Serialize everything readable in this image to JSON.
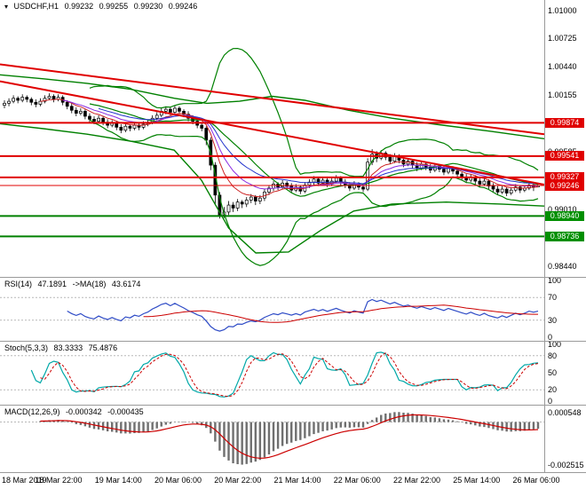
{
  "title_bar": {
    "icon": "▾",
    "symbol": "USDCHF,H1",
    "open": "0.99232",
    "high": "0.99255",
    "low": "0.99230",
    "close": "0.99246"
  },
  "colors": {
    "up_candle": "#ffffff",
    "down_candle": "#000000",
    "candle_outline": "#000000",
    "bollinger": "#008000",
    "level_red": "#e00000",
    "level_green": "#008000",
    "trendline": "#e00000",
    "tag_red_bg": "#e00000",
    "tag_green_bg": "#008f00",
    "tag_text": "#ffffff",
    "axis_text": "#000000",
    "divider": "#9a9a9a",
    "rsi_line": "#2e4bc6",
    "rsi_ma": "#cc0000",
    "stoch_k": "#00a8a8",
    "stoch_d": "#cc0000",
    "macd_hist": "#6f6f6f",
    "macd_signal": "#cc0000",
    "ema_fast": "#cc2222",
    "ema_mid": "#8a2be2",
    "ema_slow": "#2233cc"
  },
  "chart_data": [
    {
      "type": "candlestick",
      "panel": "price",
      "symbol": "USDCHF",
      "timeframe": "H1",
      "x_labels": [
        "18 Mar 2019",
        "18 Mar 22:00",
        "19 Mar 14:00",
        "20 Mar 06:00",
        "20 Mar 22:00",
        "21 Mar 14:00",
        "22 Mar 06:00",
        "22 Mar 22:00",
        "25 Mar 14:00",
        "26 Mar 06:00"
      ],
      "y_ticks": [
        "1.01000",
        "1.00725",
        "1.00440",
        "1.00155",
        "0.99870",
        "0.99585",
        "0.99300",
        "0.99010",
        "0.98725",
        "0.98440"
      ],
      "y_tick_values": [
        1.01,
        1.00725,
        1.0044,
        1.00155,
        0.9987,
        0.99585,
        0.993,
        0.9901,
        0.98725,
        0.9844
      ],
      "y_range": [
        0.9833,
        1.01105
      ],
      "levels": [
        {
          "price": 0.99874,
          "label": "0.99874",
          "color": "red"
        },
        {
          "price": 0.99541,
          "label": "0.99541",
          "color": "red"
        },
        {
          "price": 0.99327,
          "label": "0.99327",
          "color": "red"
        },
        {
          "price": 0.9894,
          "label": "0.98940",
          "color": "green"
        },
        {
          "price": 0.98736,
          "label": "0.98736",
          "color": "green"
        }
      ],
      "current_price": {
        "price": 0.99246,
        "label": "0.99246",
        "color": "red"
      },
      "trendlines": [
        {
          "x1": 0.0,
          "price1": 1.0046,
          "x2": 1.0,
          "price2": 0.9976
        },
        {
          "x1": 0.0,
          "price1": 1.0029,
          "x2": 1.0,
          "price2": 0.99255
        }
      ],
      "band_upper": [
        [
          0.0,
          1.00355
        ],
        [
          0.08,
          1.00315
        ],
        [
          0.16,
          1.0027
        ],
        [
          0.24,
          1.0021
        ],
        [
          0.32,
          1.0012
        ],
        [
          0.38,
          1.0007
        ],
        [
          0.44,
          1.0009
        ],
        [
          0.5,
          1.0014
        ],
        [
          0.56,
          1.001
        ],
        [
          0.64,
          1.0
        ],
        [
          0.72,
          0.9992
        ],
        [
          0.8,
          0.9986
        ],
        [
          0.9,
          0.9979
        ],
        [
          1.0,
          0.99715
        ]
      ],
      "band_lower": [
        [
          0.0,
          0.99865
        ],
        [
          0.08,
          0.99815
        ],
        [
          0.16,
          0.9976
        ],
        [
          0.24,
          0.9969
        ],
        [
          0.32,
          0.996
        ],
        [
          0.37,
          0.993
        ],
        [
          0.42,
          0.9882
        ],
        [
          0.47,
          0.9857
        ],
        [
          0.53,
          0.9858
        ],
        [
          0.59,
          0.988
        ],
        [
          0.65,
          0.9899
        ],
        [
          0.72,
          0.9906
        ],
        [
          0.82,
          0.9908
        ],
        [
          0.92,
          0.9906
        ],
        [
          1.0,
          0.9904
        ]
      ],
      "ohlc": [
        [
          1.0005,
          1.001,
          1.0002,
          1.0007
        ],
        [
          1.0007,
          1.0012,
          1.0004,
          1.0009
        ],
        [
          1.0009,
          1.0015,
          1.0007,
          1.0012
        ],
        [
          1.0012,
          1.0014,
          1.0007,
          1.001
        ],
        [
          1.001,
          1.0016,
          1.0008,
          1.0013
        ],
        [
          1.0013,
          1.0015,
          1.0008,
          1.0011
        ],
        [
          1.0011,
          1.0013,
          1.0005,
          1.0008
        ],
        [
          1.0008,
          1.0011,
          1.0003,
          1.0006
        ],
        [
          1.0006,
          1.0012,
          1.0004,
          1.0009
        ],
        [
          1.0009,
          1.0015,
          1.0007,
          1.0012
        ],
        [
          1.0012,
          1.0017,
          1.001,
          1.0014
        ],
        [
          1.0014,
          1.0016,
          1.0008,
          1.0011
        ],
        [
          1.0011,
          1.0016,
          1.0009,
          1.0013
        ],
        [
          1.0013,
          1.0015,
          1.0005,
          1.0008
        ],
        [
          1.0008,
          1.001,
          1.0001,
          1.0004
        ],
        [
          1.0004,
          1.0007,
          0.9997,
          1.0
        ],
        [
          1.0,
          1.0003,
          0.9994,
          0.9997
        ],
        [
          0.9997,
          1.0002,
          0.9995,
          0.9999
        ],
        [
          0.9999,
          1.0001,
          0.9991,
          0.9994
        ],
        [
          0.9994,
          0.9997,
          0.9988,
          0.9991
        ],
        [
          0.9991,
          0.9994,
          0.9986,
          0.9989
        ],
        [
          0.9989,
          0.9995,
          0.9987,
          0.9992
        ],
        [
          0.9992,
          0.9994,
          0.9985,
          0.9988
        ],
        [
          0.9988,
          0.9991,
          0.9982,
          0.9985
        ],
        [
          0.9985,
          0.999,
          0.9983,
          0.9987
        ],
        [
          0.9987,
          0.9989,
          0.998,
          0.9983
        ],
        [
          0.9983,
          0.9986,
          0.9977,
          0.998
        ],
        [
          0.998,
          0.9987,
          0.9978,
          0.9984
        ],
        [
          0.9984,
          0.9986,
          0.9979,
          0.9982
        ],
        [
          0.9982,
          0.9988,
          0.998,
          0.9985
        ],
        [
          0.9985,
          0.9987,
          0.998,
          0.9983
        ],
        [
          0.9983,
          0.9989,
          0.9981,
          0.9986
        ],
        [
          0.9986,
          0.9991,
          0.9984,
          0.9988
        ],
        [
          0.9988,
          0.9995,
          0.9986,
          0.9992
        ],
        [
          0.9992,
          0.9998,
          0.999,
          0.9995
        ],
        [
          0.9995,
          1.0002,
          0.9993,
          0.9999
        ],
        [
          0.9999,
          1.0004,
          0.9996,
          1.0001
        ],
        [
          1.0001,
          1.0003,
          0.9995,
          0.9998
        ],
        [
          0.9998,
          1.0005,
          0.9996,
          1.0002
        ],
        [
          1.0002,
          1.0004,
          0.9996,
          0.9999
        ],
        [
          0.9999,
          1.0001,
          0.9993,
          0.9996
        ],
        [
          0.9996,
          0.9999,
          0.9989,
          0.9992
        ],
        [
          0.9992,
          0.9995,
          0.9986,
          0.9989
        ],
        [
          0.9989,
          0.9992,
          0.9982,
          0.9985
        ],
        [
          0.9985,
          0.9988,
          0.9979,
          0.9982
        ],
        [
          0.9982,
          0.9984,
          0.9965,
          0.997
        ],
        [
          0.997,
          0.9973,
          0.994,
          0.9945
        ],
        [
          0.9945,
          0.9948,
          0.9905,
          0.9915
        ],
        [
          0.9915,
          0.9918,
          0.98915,
          0.9895
        ],
        [
          0.9895,
          0.9903,
          0.9892,
          0.9898
        ],
        [
          0.9898,
          0.9909,
          0.9895,
          0.9905
        ],
        [
          0.9905,
          0.9908,
          0.9898,
          0.9902
        ],
        [
          0.9902,
          0.9911,
          0.9899,
          0.9908
        ],
        [
          0.9908,
          0.991,
          0.9902,
          0.9906
        ],
        [
          0.9906,
          0.9913,
          0.9903,
          0.991
        ],
        [
          0.991,
          0.9916,
          0.9907,
          0.9913
        ],
        [
          0.9913,
          0.9915,
          0.9905,
          0.9909
        ],
        [
          0.9909,
          0.9915,
          0.9906,
          0.9912
        ],
        [
          0.9912,
          0.9921,
          0.9909,
          0.9918
        ],
        [
          0.9918,
          0.9925,
          0.9915,
          0.9922
        ],
        [
          0.9922,
          0.9929,
          0.9919,
          0.9926
        ],
        [
          0.9926,
          0.9928,
          0.992,
          0.9923
        ],
        [
          0.9923,
          0.993,
          0.9921,
          0.9927
        ],
        [
          0.9927,
          0.9929,
          0.9921,
          0.9924
        ],
        [
          0.9924,
          0.9927,
          0.9917,
          0.992
        ],
        [
          0.992,
          0.9926,
          0.9918,
          0.9923
        ],
        [
          0.9923,
          0.9925,
          0.9916,
          0.9919
        ],
        [
          0.9919,
          0.9928,
          0.9917,
          0.9925
        ],
        [
          0.9925,
          0.9931,
          0.9922,
          0.9928
        ],
        [
          0.9928,
          0.9934,
          0.9925,
          0.9931
        ],
        [
          0.9931,
          0.9933,
          0.9924,
          0.9927
        ],
        [
          0.9927,
          0.9933,
          0.9925,
          0.993
        ],
        [
          0.993,
          0.9932,
          0.9923,
          0.9926
        ],
        [
          0.9926,
          0.9932,
          0.9924,
          0.9929
        ],
        [
          0.9929,
          0.9935,
          0.9927,
          0.9932
        ],
        [
          0.9932,
          0.9934,
          0.9925,
          0.9928
        ],
        [
          0.9928,
          0.9931,
          0.9922,
          0.9925
        ],
        [
          0.9925,
          0.9928,
          0.9919,
          0.9922
        ],
        [
          0.9922,
          0.9929,
          0.992,
          0.9926
        ],
        [
          0.9926,
          0.9928,
          0.992,
          0.9923
        ],
        [
          0.9923,
          0.9926,
          0.9918,
          0.9921
        ],
        [
          0.9921,
          0.9952,
          0.9919,
          0.9948
        ],
        [
          0.9948,
          0.9961,
          0.9945,
          0.9956
        ],
        [
          0.9956,
          0.9959,
          0.9948,
          0.9952
        ],
        [
          0.9952,
          0.996,
          0.995,
          0.9957
        ],
        [
          0.9957,
          0.9959,
          0.995,
          0.9953
        ],
        [
          0.9953,
          0.9956,
          0.9946,
          0.9949
        ],
        [
          0.9949,
          0.9957,
          0.9947,
          0.9954
        ],
        [
          0.9954,
          0.9956,
          0.9947,
          0.995
        ],
        [
          0.995,
          0.9953,
          0.9943,
          0.9946
        ],
        [
          0.9946,
          0.9952,
          0.9944,
          0.9949
        ],
        [
          0.9949,
          0.9951,
          0.9942,
          0.9945
        ],
        [
          0.9945,
          0.9948,
          0.9939,
          0.9942
        ],
        [
          0.9942,
          0.9949,
          0.994,
          0.9946
        ],
        [
          0.9946,
          0.9948,
          0.994,
          0.9943
        ],
        [
          0.9943,
          0.9946,
          0.9937,
          0.994
        ],
        [
          0.994,
          0.9947,
          0.9938,
          0.9944
        ],
        [
          0.9944,
          0.9946,
          0.9938,
          0.9941
        ],
        [
          0.9941,
          0.9944,
          0.9935,
          0.9938
        ],
        [
          0.9938,
          0.9945,
          0.9936,
          0.9942
        ],
        [
          0.9942,
          0.9944,
          0.9936,
          0.9939
        ],
        [
          0.9939,
          0.9942,
          0.9933,
          0.9936
        ],
        [
          0.9936,
          0.9938,
          0.993,
          0.9933
        ],
        [
          0.9933,
          0.9936,
          0.9927,
          0.993
        ],
        [
          0.993,
          0.9936,
          0.9928,
          0.9933
        ],
        [
          0.9933,
          0.9935,
          0.9926,
          0.9929
        ],
        [
          0.9929,
          0.9932,
          0.9923,
          0.9926
        ],
        [
          0.9926,
          0.9932,
          0.9924,
          0.9929
        ],
        [
          0.9929,
          0.9931,
          0.9921,
          0.9924
        ],
        [
          0.9924,
          0.9927,
          0.9918,
          0.9921
        ],
        [
          0.9921,
          0.9924,
          0.9915,
          0.9918
        ],
        [
          0.9918,
          0.9924,
          0.9916,
          0.9921
        ],
        [
          0.9921,
          0.9923,
          0.9914,
          0.9917
        ],
        [
          0.9917,
          0.9923,
          0.9915,
          0.992
        ],
        [
          0.992,
          0.9926,
          0.9918,
          0.9923
        ],
        [
          0.9923,
          0.9925,
          0.9917,
          0.992
        ],
        [
          0.992,
          0.9925,
          0.9918,
          0.9922
        ],
        [
          0.9922,
          0.9928,
          0.992,
          0.9925
        ],
        [
          0.9925,
          0.9927,
          0.9919,
          0.99232
        ],
        [
          0.99232,
          0.99255,
          0.9923,
          0.99246
        ]
      ]
    },
    {
      "type": "line",
      "indicator": "RSI",
      "header": {
        "name": "RSI(14)",
        "value": "47.1891",
        "ma_name": "->MA(18)",
        "ma_value": "43.6174"
      },
      "y_ticks": [
        "100",
        "70",
        "30",
        "0"
      ],
      "y_tick_values": [
        100,
        70,
        30,
        0
      ],
      "levels": [
        70,
        30
      ],
      "y_range": [
        0,
        100
      ]
    },
    {
      "type": "line",
      "indicator": "Stochastic",
      "header": {
        "name": "Stoch(5,3,3)",
        "value": "83.3333",
        "signal_value": "75.4876"
      },
      "y_ticks": [
        "100",
        "80",
        "50",
        "20",
        "0"
      ],
      "y_tick_values": [
        100,
        80,
        50,
        20,
        0
      ],
      "levels": [
        80,
        20
      ],
      "y_range": [
        0,
        100
      ]
    },
    {
      "type": "bar",
      "indicator": "MACD",
      "header": {
        "name": "MACD(12,26,9)",
        "value": "-0.000342",
        "signal_value": "-0.000435"
      },
      "y_ticks": [
        "0.000548",
        "-0.002515"
      ],
      "y_tick_values": [
        0.000548,
        -0.002515
      ],
      "y_range": [
        -0.0027,
        0.0008
      ]
    }
  ]
}
